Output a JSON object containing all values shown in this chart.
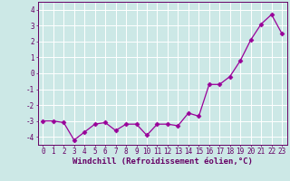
{
  "x": [
    0,
    1,
    2,
    3,
    4,
    5,
    6,
    7,
    8,
    9,
    10,
    11,
    12,
    13,
    14,
    15,
    16,
    17,
    18,
    19,
    20,
    21,
    22,
    23
  ],
  "y": [
    -3.0,
    -3.0,
    -3.1,
    -4.2,
    -3.7,
    -3.2,
    -3.1,
    -3.6,
    -3.2,
    -3.2,
    -3.9,
    -3.2,
    -3.2,
    -3.3,
    -2.5,
    -2.7,
    -0.7,
    -0.7,
    -0.2,
    0.8,
    2.1,
    3.1,
    3.7,
    2.5
  ],
  "line_color": "#990099",
  "marker": "D",
  "markersize": 2.5,
  "linewidth": 0.9,
  "xlabel": "Windchill (Refroidissement éolien,°C)",
  "xlabel_fontsize": 6.5,
  "ylim": [
    -4.5,
    4.5
  ],
  "xlim": [
    -0.5,
    23.5
  ],
  "yticks": [
    -4,
    -3,
    -2,
    -1,
    0,
    1,
    2,
    3,
    4
  ],
  "xticks": [
    0,
    1,
    2,
    3,
    4,
    5,
    6,
    7,
    8,
    9,
    10,
    11,
    12,
    13,
    14,
    15,
    16,
    17,
    18,
    19,
    20,
    21,
    22,
    23
  ],
  "background_color": "#cce8e6",
  "grid_color": "#ffffff",
  "tick_color": "#660066",
  "tick_fontsize": 5.5,
  "spine_color": "#660066"
}
